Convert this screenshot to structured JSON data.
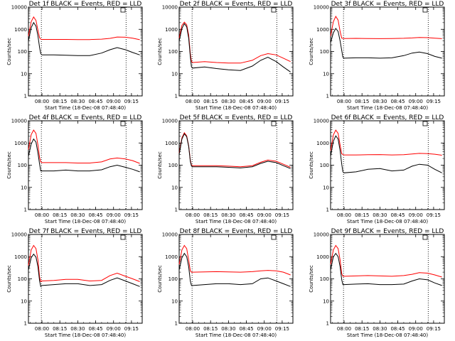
{
  "chart_data": {
    "type": "line",
    "layout": "3x3 grid of panels",
    "y_scale": "log",
    "ylim": [
      1,
      10000
    ],
    "y_ticks": [
      "1",
      "10",
      "100",
      "1000",
      "10000"
    ],
    "x_ticks": [
      "08:00",
      "08:15",
      "08:30",
      "08:45",
      "09:00",
      "09:15"
    ],
    "x_range": [
      "07:48:40",
      "09:24"
    ],
    "xlabel": "Start Time (18-Dec-08 07:48:40)",
    "ylabel": "Counts/sec",
    "vertical_markers": [
      "07:59:30",
      "09:10:30"
    ],
    "colors": {
      "events": "#000000",
      "lld": "#ff0000"
    },
    "times": [
      "07:48:40",
      "07:51:00",
      "07:53:00",
      "07:55:00",
      "07:56:40",
      "07:58:00",
      "07:59:00",
      "08:00:00",
      "08:10:00",
      "08:20:00",
      "08:30:00",
      "08:40:00",
      "08:50:00",
      "08:57:00",
      "09:03:00",
      "09:10:00",
      "09:16:00",
      "09:22:00"
    ],
    "panels": [
      {
        "title": "Det 1f BLACK = Events, RED = LLD",
        "events": [
          300,
          1200,
          2000,
          1400,
          500,
          150,
          80,
          70,
          70,
          68,
          65,
          65,
          85,
          120,
          150,
          120,
          90,
          70
        ],
        "lld": [
          500,
          2200,
          3600,
          2500,
          900,
          420,
          360,
          350,
          350,
          350,
          345,
          345,
          360,
          390,
          450,
          440,
          400,
          340
        ]
      },
      {
        "title": "Det 2f BLACK = Events, RED = LLD",
        "events": [
          300,
          1100,
          1800,
          1300,
          400,
          60,
          20,
          18,
          20,
          17,
          15,
          14,
          22,
          40,
          55,
          35,
          20,
          12
        ],
        "lld": [
          400,
          1500,
          2100,
          1600,
          550,
          80,
          35,
          32,
          35,
          32,
          30,
          30,
          40,
          65,
          80,
          70,
          50,
          35
        ]
      },
      {
        "title": "Det 3f BLACK = Events, RED = LLD",
        "events": [
          250,
          700,
          1100,
          800,
          300,
          110,
          55,
          50,
          52,
          52,
          50,
          52,
          65,
          85,
          95,
          80,
          60,
          50
        ],
        "lld": [
          500,
          2200,
          3800,
          2600,
          800,
          400,
          390,
          385,
          390,
          385,
          380,
          385,
          395,
          410,
          430,
          420,
          400,
          380
        ]
      },
      {
        "title": "Det 4f BLACK = Events, RED = LLD",
        "events": [
          250,
          900,
          1500,
          1100,
          350,
          110,
          55,
          55,
          55,
          60,
          55,
          55,
          62,
          85,
          100,
          80,
          65,
          50
        ],
        "lld": [
          500,
          2400,
          3800,
          2700,
          800,
          220,
          140,
          130,
          130,
          130,
          125,
          125,
          140,
          190,
          210,
          190,
          160,
          120
        ]
      },
      {
        "title": "Det 5f BLACK = Events, RED = LLD",
        "events": [
          300,
          1500,
          2600,
          1900,
          700,
          150,
          90,
          85,
          85,
          85,
          80,
          75,
          85,
          120,
          150,
          130,
          95,
          70
        ],
        "lld": [
          350,
          1700,
          2900,
          2100,
          750,
          170,
          100,
          95,
          95,
          95,
          90,
          85,
          95,
          135,
          170,
          150,
          110,
          80
        ]
      },
      {
        "title": "Det 6f BLACK = Events, RED = LLD",
        "events": [
          250,
          1200,
          2100,
          1500,
          450,
          110,
          50,
          45,
          50,
          65,
          70,
          55,
          60,
          90,
          110,
          100,
          65,
          45
        ],
        "lld": [
          450,
          2300,
          3800,
          2700,
          800,
          330,
          300,
          290,
          290,
          295,
          300,
          290,
          295,
          320,
          340,
          330,
          310,
          280
        ]
      },
      {
        "title": "Det 7f BLACK = Events, RED = LLD",
        "events": [
          250,
          900,
          1300,
          950,
          350,
          80,
          45,
          50,
          55,
          60,
          60,
          50,
          55,
          85,
          110,
          80,
          60,
          45
        ],
        "lld": [
          400,
          2000,
          3200,
          2300,
          700,
          120,
          75,
          80,
          85,
          95,
          95,
          80,
          85,
          140,
          180,
          130,
          100,
          75
        ]
      },
      {
        "title": "Det 8f BLACK = Events, RED = LLD",
        "events": [
          250,
          900,
          1400,
          1000,
          350,
          80,
          50,
          50,
          55,
          60,
          60,
          55,
          60,
          100,
          110,
          80,
          60,
          45
        ],
        "lld": [
          450,
          2000,
          3200,
          2300,
          700,
          230,
          200,
          200,
          205,
          210,
          205,
          200,
          210,
          230,
          240,
          230,
          200,
          150
        ]
      },
      {
        "title": "Det 9f BLACK = Events, RED = LLD",
        "events": [
          250,
          1000,
          1400,
          1000,
          350,
          90,
          55,
          55,
          58,
          60,
          55,
          55,
          58,
          80,
          100,
          90,
          65,
          50
        ],
        "lld": [
          450,
          2000,
          3200,
          2300,
          700,
          170,
          130,
          130,
          135,
          140,
          135,
          130,
          140,
          160,
          190,
          180,
          150,
          120
        ]
      }
    ]
  }
}
